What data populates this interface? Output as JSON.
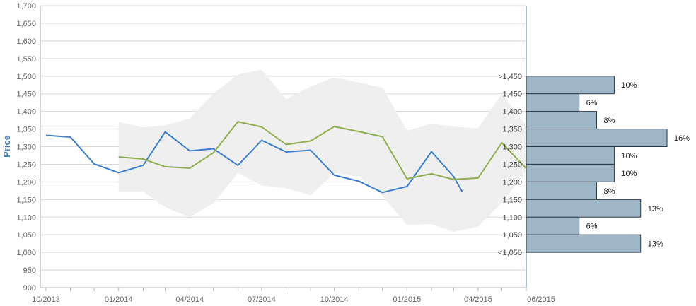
{
  "chart_data": {
    "type": "line",
    "xlabel": "",
    "ylabel": "Price",
    "ylim": [
      900,
      1700
    ],
    "y_ticks": [
      "900",
      "950",
      "1,000",
      "1,050",
      "1,100",
      "1,150",
      "1,200",
      "1,250",
      "1,300",
      "1,350",
      "1,400",
      "1,450",
      "1,500",
      "1,550",
      "1,600",
      "1,650",
      "1,700"
    ],
    "x_tick_labels": [
      "10/2013",
      "01/2014",
      "04/2014",
      "07/2014",
      "10/2014",
      "01/2015",
      "04/2015",
      "06/2015"
    ],
    "grid": true,
    "legend": "none",
    "colors": {
      "blue": "#3a7fcf",
      "green": "#8fb04e",
      "band": "#efefef",
      "bars": "#9fb6c6",
      "bar_border": "#2d3a47",
      "axis": "#5a86a8"
    },
    "series": [
      {
        "color": "#3a7fcf",
        "x": [
          "2013-10-01",
          "2013-11-01",
          "2013-12-01",
          "2014-01-01",
          "2014-02-01",
          "2014-03-01",
          "2014-04-01",
          "2014-05-01",
          "2014-06-01",
          "2014-07-01",
          "2014-08-01",
          "2014-09-01",
          "2014-10-01",
          "2014-11-01",
          "2014-12-01",
          "2015-01-01",
          "2015-02-01",
          "2015-03-01",
          "2015-03-12"
        ],
        "values": [
          1332,
          1327,
          1251,
          1226,
          1247,
          1342,
          1288,
          1294,
          1247,
          1318,
          1285,
          1290,
          1219,
          1202,
          1170,
          1187,
          1286,
          1215,
          1172
        ]
      },
      {
        "color": "#8fb04e",
        "x": [
          "2014-01-01",
          "2014-02-01",
          "2014-03-01",
          "2014-04-01",
          "2014-05-01",
          "2014-06-01",
          "2014-07-01",
          "2014-08-01",
          "2014-09-01",
          "2014-10-01",
          "2014-11-01",
          "2014-12-01",
          "2015-01-01",
          "2015-02-01",
          "2015-03-01",
          "2015-04-01",
          "2015-05-01",
          "2015-06-01"
        ],
        "values": [
          1271,
          1265,
          1243,
          1239,
          1283,
          1371,
          1356,
          1306,
          1316,
          1357,
          1343,
          1328,
          1209,
          1223,
          1207,
          1211,
          1311,
          1238
        ]
      }
    ],
    "range_band": {
      "color": "#efefef",
      "x": [
        "2014-01-01",
        "2014-02-01",
        "2014-03-01",
        "2014-04-01",
        "2014-05-01",
        "2014-06-01",
        "2014-07-01",
        "2014-08-01",
        "2014-09-01",
        "2014-10-01",
        "2014-11-01",
        "2014-12-01",
        "2015-01-01",
        "2015-02-01",
        "2015-03-01",
        "2015-04-01",
        "2015-05-01",
        "2015-06-01"
      ],
      "upper": [
        1370,
        1355,
        1360,
        1380,
        1450,
        1505,
        1518,
        1435,
        1470,
        1497,
        1482,
        1468,
        1345,
        1365,
        1357,
        1352,
        1450,
        1360
      ],
      "lower": [
        1172,
        1172,
        1128,
        1100,
        1140,
        1225,
        1190,
        1182,
        1162,
        1225,
        1215,
        1160,
        1078,
        1080,
        1058,
        1073,
        1140,
        1230
      ]
    },
    "distribution": {
      "bin_labels": [
        ">1,450",
        "1,450",
        "1,400",
        "1,350",
        "1,300",
        "1,250",
        "1,200",
        "1,150",
        "1,100",
        "1,050",
        "<1,050"
      ],
      "bin_lower": [
        1450,
        1400,
        1350,
        1300,
        1250,
        1200,
        1150,
        1100,
        1050,
        1000
      ],
      "bin_upper": [
        1500,
        1450,
        1400,
        1350,
        1300,
        1250,
        1200,
        1150,
        1100,
        1050
      ],
      "percent_labels": [
        "10%",
        "6%",
        "8%",
        "16%",
        "10%",
        "10%",
        "8%",
        "13%",
        "6%",
        "13%"
      ],
      "percent": [
        10,
        6,
        8,
        16,
        10,
        10,
        8,
        13,
        6,
        13
      ]
    }
  }
}
